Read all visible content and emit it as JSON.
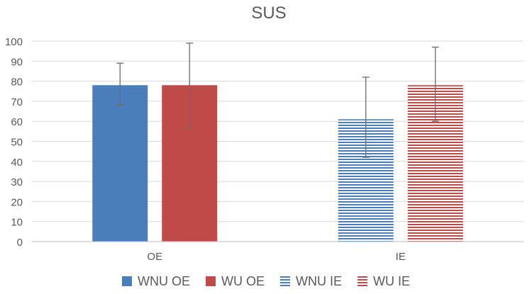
{
  "chart_data": {
    "type": "bar",
    "title": "SUS",
    "xlabel": "",
    "ylabel": "",
    "ylim": [
      0,
      100
    ],
    "yticks": [
      "0",
      "10",
      "20",
      "30",
      "40",
      "50",
      "60",
      "70",
      "80",
      "90",
      "100"
    ],
    "categories": [
      "OE",
      "IE"
    ],
    "series": [
      {
        "name": "WNU OE",
        "color": "#4a7ebb",
        "pattern": "solid",
        "values": [
          78,
          null
        ],
        "error_low": [
          68,
          null
        ],
        "error_high": [
          89,
          null
        ]
      },
      {
        "name": "WU OE",
        "color": "#be4b48",
        "pattern": "solid",
        "values": [
          78,
          null
        ],
        "error_low": [
          57,
          null
        ],
        "error_high": [
          99,
          null
        ]
      },
      {
        "name": "WNU IE",
        "color": "#4a7ebb",
        "pattern": "horizontal-stripes",
        "values": [
          null,
          61
        ],
        "error_low": [
          null,
          42
        ],
        "error_high": [
          null,
          82
        ]
      },
      {
        "name": "WU IE",
        "color": "#be4b48",
        "pattern": "horizontal-stripes",
        "values": [
          null,
          78
        ],
        "error_low": [
          null,
          60
        ],
        "error_high": [
          null,
          97
        ]
      }
    ],
    "grid": true,
    "legend_position": "bottom"
  }
}
